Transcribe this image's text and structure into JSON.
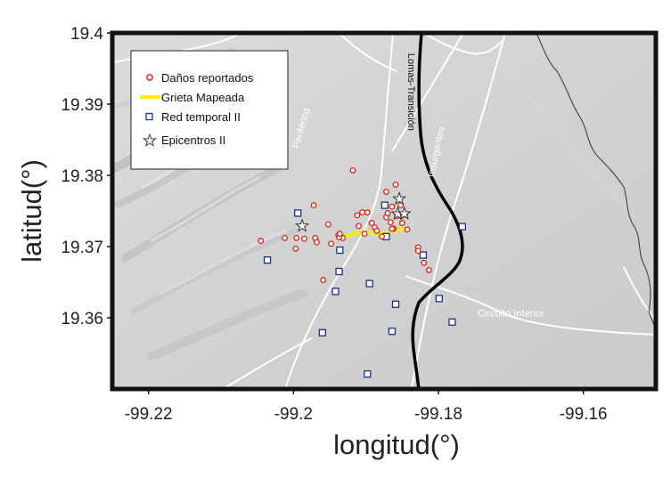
{
  "chart_data": {
    "type": "scatter",
    "xlabel": "longitud(°)",
    "ylabel": "latitud(°)",
    "xlim": [
      -99.225,
      -99.15
    ],
    "ylim": [
      19.35,
      19.4
    ],
    "xticks": [
      -99.22,
      -99.2,
      -99.18,
      -99.16
    ],
    "xtick_labels": [
      "-99.22",
      "-99.2",
      "-99.18",
      "-99.16"
    ],
    "yticks": [
      19.36,
      19.37,
      19.38,
      19.39,
      19.4
    ],
    "ytick_labels": [
      "19.36",
      "19.37",
      "19.38",
      "19.39",
      "19.4"
    ],
    "grid": false,
    "legend_position": "top-left",
    "legend": [
      {
        "key": "danos",
        "label": "Daños reportados"
      },
      {
        "key": "grieta",
        "label": "Grieta Mapeada"
      },
      {
        "key": "red",
        "label": "Red temporal II"
      },
      {
        "key": "epi",
        "label": "Epicentros II"
      }
    ],
    "colors": {
      "danos": "#dd2211",
      "grieta": "#ffee00",
      "red": "#1c2f8c",
      "epi": "#333333",
      "roads": "#ffffff",
      "lomas_line": "#000000",
      "boundary": "#333333",
      "frame": "#111111"
    },
    "road_labels": [
      {
        "text": "Periférico",
        "lon": -99.1985,
        "lat": 19.3865,
        "angle": -75
      },
      {
        "text": "Insurgentes",
        "lon": -99.1799,
        "lat": 19.3832,
        "angle": -78
      },
      {
        "text": "Lomas-Transición",
        "lon": -99.1842,
        "lat": 19.3917,
        "angle": 90
      },
      {
        "text": "Circuito Interior",
        "lon": -99.17,
        "lat": 19.3602,
        "angle": 0
      }
    ],
    "series": [
      {
        "key": "danos",
        "name": "Daños reportados",
        "marker": "circle",
        "points": [
          [
            -99.2045,
            19.3708
          ],
          [
            -99.2012,
            19.3712
          ],
          [
            -99.1997,
            19.3697
          ],
          [
            -99.1985,
            19.3711
          ],
          [
            -99.1972,
            19.3758
          ],
          [
            -99.197,
            19.3712
          ],
          [
            -99.1968,
            19.3706
          ],
          [
            -99.1952,
            19.3731
          ],
          [
            -99.1948,
            19.3704
          ],
          [
            -99.1938,
            19.3716
          ],
          [
            -99.1932,
            19.3712
          ],
          [
            -99.1937,
            19.3713
          ],
          [
            -99.1918,
            19.3807
          ],
          [
            -99.1912,
            19.3744
          ],
          [
            -99.191,
            19.3729
          ],
          [
            -99.1905,
            19.3748
          ],
          [
            -99.1902,
            19.3718
          ],
          [
            -99.1898,
            19.3748
          ],
          [
            -99.1892,
            19.3733
          ],
          [
            -99.1888,
            19.3727
          ],
          [
            -99.1885,
            19.3722
          ],
          [
            -99.1878,
            19.3714
          ],
          [
            -99.1872,
            19.3741
          ],
          [
            -99.1872,
            19.3777
          ],
          [
            -99.187,
            19.3747
          ],
          [
            -99.1866,
            19.3734
          ],
          [
            -99.1864,
            19.3756
          ],
          [
            -99.1862,
            19.3725
          ],
          [
            -99.1859,
            19.3787
          ],
          [
            -99.1857,
            19.3743
          ],
          [
            -99.1852,
            19.3758
          ],
          [
            -99.1851,
            19.3743
          ],
          [
            -99.185,
            19.3733
          ],
          [
            -99.1846,
            19.3745
          ],
          [
            -99.1843,
            19.3724
          ],
          [
            -99.1828,
            19.3699
          ],
          [
            -99.1828,
            19.3694
          ],
          [
            -99.182,
            19.3677
          ],
          [
            -99.1813,
            19.3667
          ],
          [
            -99.1959,
            19.3653
          ],
          [
            -99.1996,
            19.3712
          ],
          [
            -99.1936,
            19.3718
          ],
          [
            -99.1864,
            19.3725
          ]
        ]
      },
      {
        "key": "red",
        "name": "Red temporal II",
        "marker": "square",
        "points": [
          [
            -99.2036,
            19.3681
          ],
          [
            -99.1994,
            19.3747
          ],
          [
            -99.196,
            19.3579
          ],
          [
            -99.1942,
            19.3637
          ],
          [
            -99.1937,
            19.3665
          ],
          [
            -99.1936,
            19.3695
          ],
          [
            -99.1898,
            19.3521
          ],
          [
            -99.1895,
            19.3648
          ],
          [
            -99.1864,
            19.3581
          ],
          [
            -99.1859,
            19.3619
          ],
          [
            -99.1874,
            19.3758
          ],
          [
            -99.1872,
            19.3714
          ],
          [
            -99.1821,
            19.3688
          ],
          [
            -99.1799,
            19.3627
          ],
          [
            -99.1781,
            19.3594
          ],
          [
            -99.1767,
            19.3728
          ]
        ]
      },
      {
        "key": "epi",
        "name": "Epicentros II",
        "marker": "star",
        "points": [
          [
            -99.1988,
            19.3729
          ],
          [
            -99.1854,
            19.3767
          ],
          [
            -99.1856,
            19.3746
          ],
          [
            -99.1847,
            19.3746
          ]
        ]
      }
    ],
    "lines": [
      {
        "key": "grieta",
        "name": "Grieta Mapeada",
        "points": [
          [
            -99.1936,
            19.3711
          ],
          [
            -99.1915,
            19.3719
          ],
          [
            -99.1895,
            19.372
          ],
          [
            -99.1875,
            19.3718
          ],
          [
            -99.1858,
            19.3724
          ],
          [
            -99.1843,
            19.3725
          ]
        ]
      }
    ]
  }
}
